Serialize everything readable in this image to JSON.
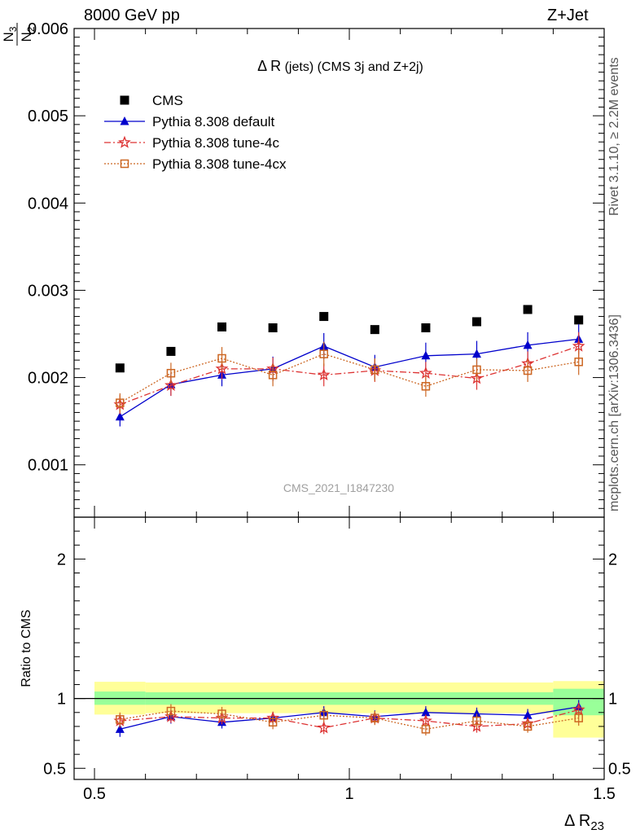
{
  "header": {
    "left": "8000 GeV pp",
    "right": "Z+Jet"
  },
  "side_labels": {
    "rivet": "Rivet 3.1.10, ≥ 2.2M events",
    "mcplots": "mcplots.cern.ch [arXiv:1306.3436]"
  },
  "watermark": "CMS_2021_I1847230",
  "chart_data": {
    "type": "scatter",
    "title": "Δ R (jets) (CMS 3j and Z+2j)",
    "ylabel": "N_3/N_2",
    "ylabel_top": "N",
    "ylabel_top_sub": "3",
    "ylabel_bottom": "N",
    "ylabel_bottom_sub": "2",
    "xlabel": "Δ R",
    "xlabel_sub": "23",
    "ratio_ylabel": "Ratio to CMS",
    "xlim": [
      0.46,
      1.5
    ],
    "ylim": [
      0.0004,
      0.006
    ],
    "ratio_ylim": [
      0.42,
      2.3
    ],
    "x_ticks": [
      "0.5",
      "1",
      "1.5"
    ],
    "y_ticks": [
      "0.001",
      "0.002",
      "0.003",
      "0.004",
      "0.005",
      "0.006"
    ],
    "ratio_ticks": [
      "0.5",
      "1",
      "2"
    ],
    "legend_position": "top-left",
    "x": [
      0.55,
      0.65,
      0.75,
      0.85,
      0.95,
      1.05,
      1.15,
      1.25,
      1.35,
      1.45
    ],
    "series": [
      {
        "name": "CMS",
        "color": "#000000",
        "marker": "square-filled",
        "line": "none",
        "values": [
          0.00211,
          0.0023,
          0.00258,
          0.00257,
          0.0027,
          0.00255,
          0.00257,
          0.00264,
          0.00278,
          0.00266
        ],
        "ratio": [
          1,
          1,
          1,
          1,
          1,
          1,
          1,
          1,
          1,
          1
        ]
      },
      {
        "name": "Pythia 8.308 default",
        "color": "#0000cc",
        "marker": "triangle-filled",
        "line": "solid",
        "values": [
          0.00155,
          0.00192,
          0.00203,
          0.0021,
          0.00236,
          0.00212,
          0.00225,
          0.00227,
          0.00237,
          0.00244
        ],
        "errors": [
          0.00011,
          0.00013,
          0.00013,
          0.00014,
          0.00015,
          0.00014,
          0.00015,
          0.00015,
          0.00015,
          0.00017
        ],
        "ratio": [
          0.78,
          0.87,
          0.83,
          0.86,
          0.9,
          0.87,
          0.9,
          0.89,
          0.88,
          0.94
        ],
        "ratio_errors": [
          0.055,
          0.05,
          0.045,
          0.045,
          0.045,
          0.045,
          0.045,
          0.045,
          0.045,
          0.05
        ]
      },
      {
        "name": "Pythia 8.308 tune-4c",
        "color": "#dd3333",
        "marker": "star-open",
        "line": "dashdot",
        "values": [
          0.00169,
          0.00191,
          0.0021,
          0.0021,
          0.00203,
          0.00208,
          0.00205,
          0.00199,
          0.00216,
          0.00236
        ],
        "errors": [
          0.00011,
          0.00012,
          0.00012,
          0.00013,
          0.00013,
          0.00013,
          0.00013,
          0.00013,
          0.00014,
          0.00016
        ],
        "ratio": [
          0.84,
          0.87,
          0.86,
          0.86,
          0.79,
          0.86,
          0.84,
          0.8,
          0.82,
          0.92
        ],
        "ratio_errors": [
          0.05,
          0.045,
          0.045,
          0.045,
          0.045,
          0.045,
          0.045,
          0.045,
          0.045,
          0.05
        ]
      },
      {
        "name": "Pythia 8.308 tune-4cx",
        "color": "#cc6622",
        "marker": "square-open",
        "line": "dotted",
        "values": [
          0.00171,
          0.00205,
          0.00222,
          0.00203,
          0.00227,
          0.00209,
          0.0019,
          0.00209,
          0.00208,
          0.00218
        ],
        "errors": [
          0.00011,
          0.00012,
          0.00013,
          0.00013,
          0.00014,
          0.00013,
          0.00012,
          0.00013,
          0.00013,
          0.00015
        ],
        "ratio": [
          0.85,
          0.91,
          0.89,
          0.83,
          0.88,
          0.86,
          0.78,
          0.84,
          0.8,
          0.86
        ],
        "ratio_errors": [
          0.05,
          0.05,
          0.05,
          0.05,
          0.05,
          0.05,
          0.045,
          0.05,
          0.045,
          0.055
        ]
      }
    ],
    "uncertainty_bands": {
      "inner_color": "#99ff99",
      "outer_color": "#ffff99",
      "bins": [
        {
          "x": [
            0.5,
            0.6
          ],
          "inner": [
            0.955,
            1.05
          ],
          "outer": [
            0.885,
            1.12
          ]
        },
        {
          "x": [
            0.6,
            1.4
          ],
          "inner": [
            0.955,
            1.045
          ],
          "outer": [
            0.895,
            1.115
          ]
        },
        {
          "x": [
            1.4,
            1.5
          ],
          "inner": [
            0.88,
            1.07
          ],
          "outer": [
            0.72,
            1.125
          ]
        }
      ]
    }
  }
}
